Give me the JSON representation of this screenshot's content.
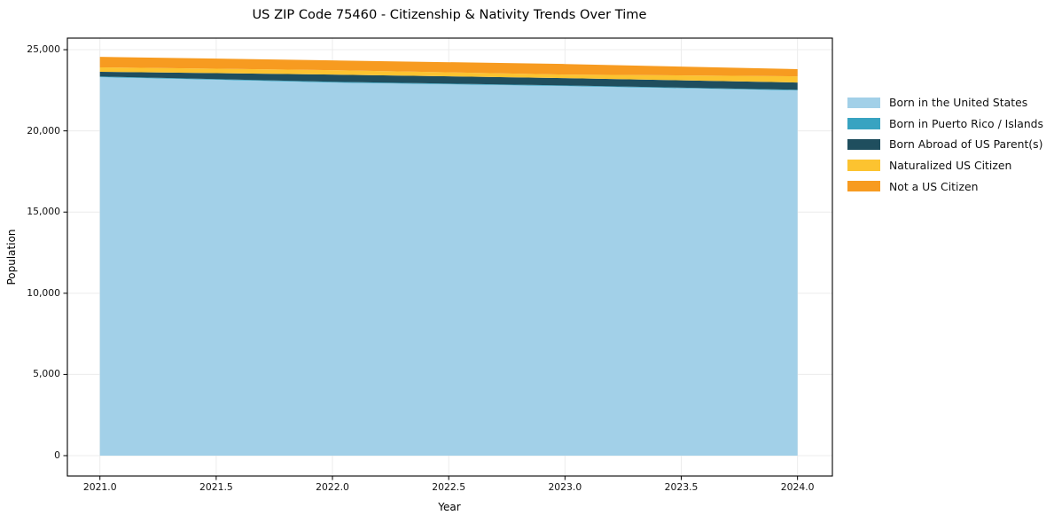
{
  "chart_data": {
    "type": "area",
    "stacked": true,
    "title": "US ZIP Code 75460 - Citizenship & Nativity Trends Over Time",
    "xlabel": "Year",
    "ylabel": "Population",
    "x": [
      2021,
      2022,
      2023,
      2024
    ],
    "series": [
      {
        "name": "Born in the United States",
        "color": "#a2d0e8",
        "values": [
          23310,
          22980,
          22760,
          22490
        ]
      },
      {
        "name": "Born in Puerto Rico / Islands",
        "color": "#38a3c1",
        "values": [
          40,
          40,
          40,
          40
        ]
      },
      {
        "name": "Born Abroad of US Parent(s)",
        "color": "#1f4e5e",
        "values": [
          290,
          450,
          450,
          450
        ]
      },
      {
        "name": "Naturalized US Citizen",
        "color": "#fcc330",
        "values": [
          270,
          270,
          220,
          380
        ]
      },
      {
        "name": "Not a US Citizen",
        "color": "#f79b20",
        "values": [
          650,
          600,
          650,
          440
        ]
      }
    ],
    "totals": [
      24560,
      24340,
      24120,
      23800
    ],
    "xlim": [
      2020.86,
      2024.15
    ],
    "ylim": [
      -1256,
      25713
    ],
    "x_ticks": {
      "values": [
        2021.0,
        2021.5,
        2022.0,
        2022.5,
        2023.0,
        2023.5,
        2024.0
      ],
      "labels": [
        "2021.0",
        "2021.5",
        "2022.0",
        "2022.5",
        "2023.0",
        "2023.5",
        "2024.0"
      ]
    },
    "y_ticks": {
      "values": [
        0,
        5000,
        10000,
        15000,
        20000,
        25000
      ],
      "labels": [
        "0",
        "5,000",
        "10,000",
        "15,000",
        "20,000",
        "25,000"
      ]
    },
    "grid": true,
    "grid_color": "#ececec",
    "axis_color": "#000000",
    "legend_position": "right outside"
  }
}
